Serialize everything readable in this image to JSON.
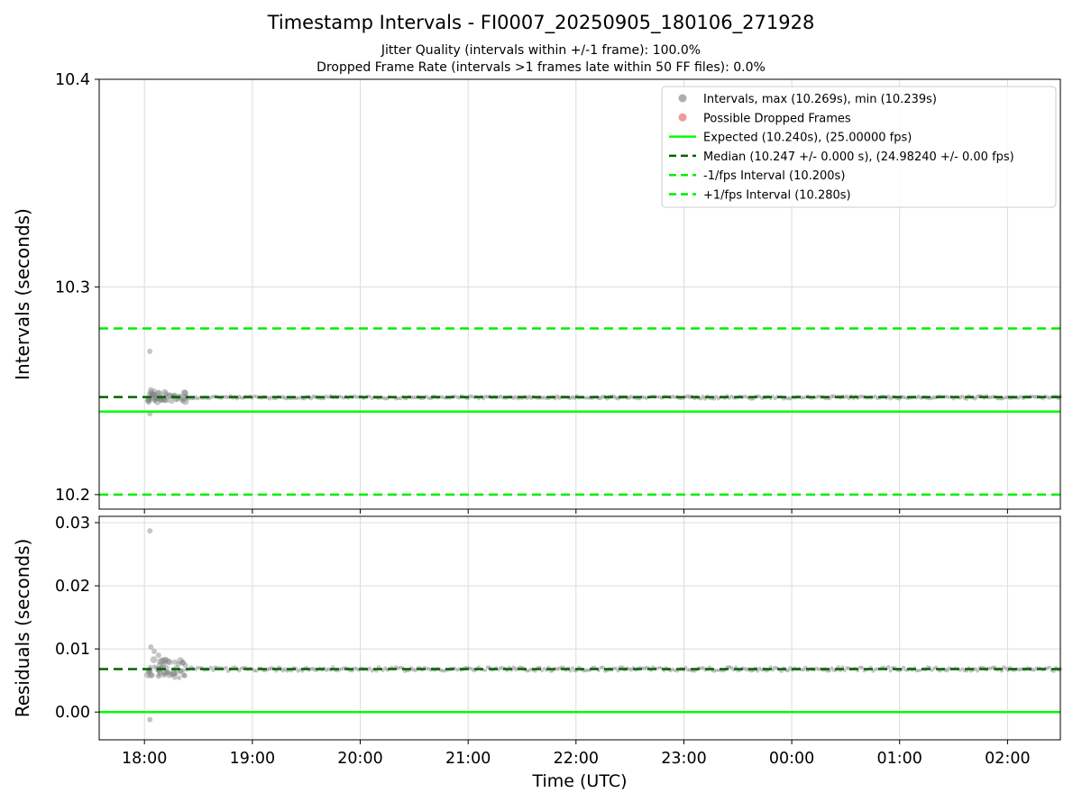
{
  "title": "Timestamp Intervals - FI0007_20250905_180106_271928",
  "subtitle1": "Jitter Quality (intervals within +/-1 frame): 100.0%",
  "subtitle2": "Dropped Frame Rate (intervals >1 frames late within 50 FF files): 0.0%",
  "chart_data": {
    "type": "scatter",
    "xlabel": "Time (UTC)",
    "xlim": [
      17.58,
      26.49
    ],
    "x_ticks": [
      18,
      19,
      20,
      21,
      22,
      23,
      24,
      25,
      26
    ],
    "x_tick_labels": [
      "18:00",
      "19:00",
      "20:00",
      "21:00",
      "22:00",
      "23:00",
      "00:00",
      "01:00",
      "02:00"
    ],
    "grid": true,
    "scatter_color": "#808080",
    "legend_position": "upper right",
    "legend": [
      {
        "type": "marker",
        "color": "#9a9a9a",
        "label": "Intervals, max (10.269s), min (10.239s)"
      },
      {
        "type": "marker",
        "color": "#f08080",
        "label": "Possible Dropped Frames"
      },
      {
        "type": "line",
        "color": "#00ff00",
        "dash": false,
        "label": "Expected (10.240s), (25.00000 fps)"
      },
      {
        "type": "line",
        "color": "#006400",
        "dash": true,
        "label": "Median (10.247 +/- 0.000 s), (24.98240 +/- 0.00 fps)"
      },
      {
        "type": "line",
        "color": "#00ee00",
        "dash": true,
        "label": "-1/fps Interval (10.200s)"
      },
      {
        "type": "line",
        "color": "#00ee00",
        "dash": true,
        "label": "+1/fps Interval (10.280s)"
      }
    ],
    "panels": [
      {
        "name": "intervals",
        "ylabel": "Intervals (seconds)",
        "ylim": [
          10.193,
          10.4
        ],
        "yticks": [
          10.2,
          10.3,
          10.4
        ],
        "ytick_labels": [
          "10.2",
          "10.3",
          "10.4"
        ],
        "hlines": [
          {
            "y": 10.28,
            "color": "#00ee00",
            "dash": true,
            "label": "+1/fps Interval (10.280s)"
          },
          {
            "y": 10.247,
            "color": "#006400",
            "dash": true,
            "label": "Median (10.247 s)"
          },
          {
            "y": 10.24,
            "color": "#00ff00",
            "dash": false,
            "label": "Expected (10.240s)"
          },
          {
            "y": 10.2,
            "color": "#00ee00",
            "dash": true,
            "label": "-1/fps Interval (10.200s)"
          }
        ],
        "stats": {
          "max": 10.269,
          "min": 10.239,
          "median": 10.247,
          "expected": 10.24,
          "fps_expected": 25.0,
          "fps_median": 24.9824
        },
        "scatter_outliers": [
          [
            18.05,
            10.269
          ],
          [
            18.04,
            10.2445
          ],
          [
            18.05,
            10.239
          ],
          [
            18.06,
            10.2505
          ],
          [
            18.09,
            10.2498
          ],
          [
            18.13,
            10.2492
          ],
          [
            18.2,
            10.2485
          ],
          [
            18.28,
            10.2479
          ],
          [
            18.38,
            10.2474
          ]
        ],
        "band": {
          "y": 10.2468,
          "x_start": 18.03,
          "x_end": 26.49,
          "points": 420,
          "jitter": 0.0006,
          "start_span": 0.35,
          "start_jitter": 0.002,
          "start_extra": 28
        }
      },
      {
        "name": "residuals",
        "ylabel": "Residuals (seconds)",
        "ylim": [
          -0.0044,
          0.031
        ],
        "yticks": [
          0.0,
          0.01,
          0.02,
          0.03
        ],
        "ytick_labels": [
          "0.00",
          "0.01",
          "0.02",
          "0.03"
        ],
        "hlines": [
          {
            "y": 0.0068,
            "color": "#006400",
            "dash": true,
            "label": "Median residual"
          },
          {
            "y": 0.0,
            "color": "#00ff00",
            "dash": false,
            "label": "Zero residual"
          }
        ],
        "scatter_outliers": [
          [
            18.05,
            0.0287
          ],
          [
            18.05,
            -0.0012
          ],
          [
            18.04,
            0.0063
          ],
          [
            18.06,
            0.0103
          ],
          [
            18.09,
            0.0096
          ],
          [
            18.13,
            0.009
          ],
          [
            18.2,
            0.0083
          ],
          [
            18.28,
            0.0079
          ],
          [
            18.38,
            0.0074
          ]
        ],
        "band": {
          "y": 0.0068,
          "x_start": 18.03,
          "x_end": 26.49,
          "points": 420,
          "jitter": 0.0003,
          "start_span": 0.35,
          "start_jitter": 0.0012,
          "start_extra": 30
        }
      }
    ]
  }
}
